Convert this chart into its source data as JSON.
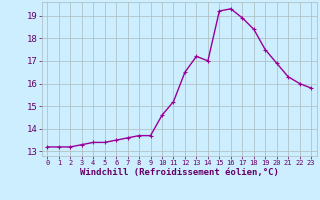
{
  "x": [
    0,
    1,
    2,
    3,
    4,
    5,
    6,
    7,
    8,
    9,
    10,
    11,
    12,
    13,
    14,
    15,
    16,
    17,
    18,
    19,
    20,
    21,
    22,
    23
  ],
  "y": [
    13.2,
    13.2,
    13.2,
    13.3,
    13.4,
    13.4,
    13.5,
    13.6,
    13.7,
    13.7,
    14.6,
    15.2,
    16.5,
    17.2,
    17.0,
    19.2,
    19.3,
    18.9,
    18.4,
    17.5,
    16.9,
    16.3,
    16.0,
    15.8
  ],
  "line_color": "#990099",
  "marker": "+",
  "marker_size": 3,
  "linewidth": 1.0,
  "bg_color": "#cceeff",
  "grid_color": "#aabbbb",
  "xlabel": "Windchill (Refroidissement éolien,°C)",
  "xlabel_color": "#660066",
  "tick_color": "#660066",
  "ylim": [
    12.8,
    19.6
  ],
  "xlim": [
    -0.5,
    23.5
  ],
  "yticks": [
    13,
    14,
    15,
    16,
    17,
    18,
    19
  ],
  "xticks": [
    0,
    1,
    2,
    3,
    4,
    5,
    6,
    7,
    8,
    9,
    10,
    11,
    12,
    13,
    14,
    15,
    16,
    17,
    18,
    19,
    20,
    21,
    22,
    23
  ],
  "ylabel_fontsize": 6.5,
  "xlabel_fontsize": 6.5,
  "xtick_fontsize": 5.0,
  "ytick_fontsize": 6.5
}
